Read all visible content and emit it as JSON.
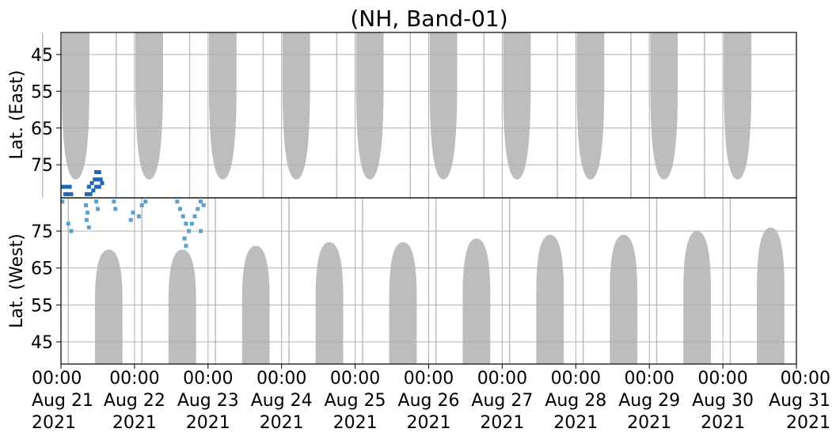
{
  "chart_data": {
    "type": "heatmap",
    "title": "(NH, Band-01)",
    "panels": [
      {
        "name": "east",
        "ylabel": "Lat. (East)",
        "yticks": [
          45,
          55,
          65,
          75
        ],
        "ylim": [
          39,
          84
        ],
        "yaxis_direction": "increasing-down"
      },
      {
        "name": "west",
        "ylabel": "Lat. (West)",
        "yticks": [
          75,
          65,
          55,
          45
        ],
        "ylim": [
          84,
          39
        ],
        "yaxis_direction": "increasing-up"
      }
    ],
    "x_ticks": [
      {
        "time": "00:00",
        "date": "Aug 21",
        "year": "2021"
      },
      {
        "time": "00:00",
        "date": "Aug 22",
        "year": "2021"
      },
      {
        "time": "00:00",
        "date": "Aug 23",
        "year": "2021"
      },
      {
        "time": "00:00",
        "date": "Aug 24",
        "year": "2021"
      },
      {
        "time": "00:00",
        "date": "Aug 25",
        "year": "2021"
      },
      {
        "time": "00:00",
        "date": "Aug 26",
        "year": "2021"
      },
      {
        "time": "00:00",
        "date": "Aug 27",
        "year": "2021"
      },
      {
        "time": "00:00",
        "date": "Aug 28",
        "year": "2021"
      },
      {
        "time": "00:00",
        "date": "Aug 29",
        "year": "2021"
      },
      {
        "time": "00:00",
        "date": "Aug 30",
        "year": "2021"
      },
      {
        "time": "00:00",
        "date": "Aug 31",
        "year": "2021"
      }
    ],
    "xlim": [
      "2021-08-21 00:00",
      "2021-08-31 00:00"
    ],
    "grid": true,
    "gray_coverage": {
      "color": "#bdbdbd",
      "east_bands": [
        {
          "day": 21.2,
          "half_width_hours": 4.5,
          "min_lat_edge": 79
        },
        {
          "day": 22.2,
          "half_width_hours": 4.5,
          "min_lat_edge": 79
        },
        {
          "day": 23.2,
          "half_width_hours": 4.5,
          "min_lat_edge": 79
        },
        {
          "day": 24.2,
          "half_width_hours": 4.5,
          "min_lat_edge": 79
        },
        {
          "day": 25.2,
          "half_width_hours": 4.5,
          "min_lat_edge": 79
        },
        {
          "day": 26.2,
          "half_width_hours": 4.5,
          "min_lat_edge": 79
        },
        {
          "day": 27.2,
          "half_width_hours": 4.5,
          "min_lat_edge": 79
        },
        {
          "day": 28.2,
          "half_width_hours": 4.5,
          "min_lat_edge": 79
        },
        {
          "day": 29.2,
          "half_width_hours": 4.5,
          "min_lat_edge": 79
        },
        {
          "day": 30.2,
          "half_width_hours": 4.5,
          "min_lat_edge": 79
        }
      ],
      "west_bands": [
        {
          "day": 21.65,
          "half_width_hours": 4.5,
          "peak_lat": 70
        },
        {
          "day": 22.65,
          "half_width_hours": 4.5,
          "peak_lat": 70
        },
        {
          "day": 23.65,
          "half_width_hours": 4.5,
          "peak_lat": 71
        },
        {
          "day": 24.65,
          "half_width_hours": 4.5,
          "peak_lat": 72
        },
        {
          "day": 25.65,
          "half_width_hours": 4.5,
          "peak_lat": 72
        },
        {
          "day": 26.65,
          "half_width_hours": 4.5,
          "peak_lat": 73
        },
        {
          "day": 27.65,
          "half_width_hours": 4.5,
          "peak_lat": 74
        },
        {
          "day": 28.65,
          "half_width_hours": 4.5,
          "peak_lat": 74
        },
        {
          "day": 29.65,
          "half_width_hours": 4.5,
          "peak_lat": 75
        },
        {
          "day": 30.65,
          "half_width_hours": 4.5,
          "peak_lat": 76
        }
      ]
    },
    "detections": {
      "color_dark": "#1f67b4",
      "color_light": "#5aa0d0",
      "east_cells": [
        {
          "day": 21.03,
          "lat": 81
        },
        {
          "day": 21.08,
          "lat": 81
        },
        {
          "day": 21.12,
          "lat": 81
        },
        {
          "day": 21.06,
          "lat": 83
        },
        {
          "day": 21.1,
          "lat": 83
        },
        {
          "day": 21.14,
          "lat": 83
        },
        {
          "day": 21.38,
          "lat": 81
        },
        {
          "day": 21.42,
          "lat": 80
        },
        {
          "day": 21.46,
          "lat": 79
        },
        {
          "day": 21.5,
          "lat": 79
        },
        {
          "day": 21.54,
          "lat": 79
        },
        {
          "day": 21.44,
          "lat": 82
        },
        {
          "day": 21.48,
          "lat": 81
        },
        {
          "day": 21.52,
          "lat": 81
        },
        {
          "day": 21.56,
          "lat": 80
        },
        {
          "day": 21.4,
          "lat": 83
        },
        {
          "day": 21.35,
          "lat": 83
        },
        {
          "day": 21.48,
          "lat": 77
        },
        {
          "day": 21.52,
          "lat": 77
        }
      ],
      "west_cells": [
        {
          "day": 21.1,
          "lat": 77
        },
        {
          "day": 21.02,
          "lat": 83
        },
        {
          "day": 21.14,
          "lat": 75
        },
        {
          "day": 21.34,
          "lat": 82
        },
        {
          "day": 21.36,
          "lat": 80
        },
        {
          "day": 21.35,
          "lat": 78
        },
        {
          "day": 21.38,
          "lat": 76
        },
        {
          "day": 21.48,
          "lat": 83
        },
        {
          "day": 21.5,
          "lat": 81
        },
        {
          "day": 21.72,
          "lat": 83
        },
        {
          "day": 21.74,
          "lat": 81
        },
        {
          "day": 21.95,
          "lat": 78
        },
        {
          "day": 21.98,
          "lat": 80
        },
        {
          "day": 22.1,
          "lat": 82
        },
        {
          "day": 22.15,
          "lat": 83
        },
        {
          "day": 22.06,
          "lat": 79
        },
        {
          "day": 22.58,
          "lat": 83
        },
        {
          "day": 22.62,
          "lat": 81
        },
        {
          "day": 22.66,
          "lat": 79
        },
        {
          "day": 22.7,
          "lat": 77
        },
        {
          "day": 22.74,
          "lat": 75
        },
        {
          "day": 22.78,
          "lat": 77
        },
        {
          "day": 22.82,
          "lat": 79
        },
        {
          "day": 22.86,
          "lat": 81
        },
        {
          "day": 22.9,
          "lat": 83
        },
        {
          "day": 22.68,
          "lat": 73
        },
        {
          "day": 22.7,
          "lat": 71
        },
        {
          "day": 22.9,
          "lat": 75
        },
        {
          "day": 22.94,
          "lat": 82
        }
      ]
    }
  }
}
